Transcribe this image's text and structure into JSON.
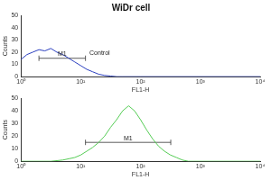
{
  "chart_data": [
    {
      "type": "line",
      "title": "WiDr cell",
      "x_label": "FL1-H",
      "y_label": "Counts",
      "series": [
        {
          "name": "Control",
          "color": "#2b3fbf",
          "x": [
            1,
            1.26,
            1.58,
            2,
            2.51,
            3.16,
            3.98,
            5.01,
            6.31,
            7.94,
            10,
            12.6,
            15.8,
            20,
            25.1,
            31.6,
            39.8,
            50.1,
            100,
            10000
          ],
          "values": [
            14,
            18,
            20,
            22,
            21,
            23,
            20,
            18,
            15,
            12,
            9,
            6,
            4,
            2,
            1,
            0.5,
            0,
            0,
            0,
            0
          ]
        }
      ],
      "gate": {
        "label": "M1",
        "x": [
          2,
          12
        ],
        "y": 15
      },
      "annotations": [
        {
          "text": "Control",
          "x": 14,
          "y": 16
        }
      ],
      "log": "x",
      "xlim": [
        1,
        10000
      ],
      "xticks": [
        {
          "value": 1,
          "label": "10⁰"
        },
        {
          "value": 10,
          "label": "10¹"
        },
        {
          "value": 100,
          "label": "10²"
        },
        {
          "value": 1000,
          "label": "10³"
        },
        {
          "value": 10000,
          "label": "10⁴"
        }
      ],
      "ylim": [
        0,
        50
      ],
      "yticks": [
        0,
        10,
        20,
        30,
        40,
        50
      ],
      "grid": false
    },
    {
      "type": "line",
      "x_label": "FL1-H",
      "y_label": "Counts",
      "series": [
        {
          "name": "WiDr",
          "color": "#55cc55",
          "x": [
            1,
            3.16,
            5.01,
            6.31,
            7.94,
            10,
            12.6,
            15.8,
            20,
            25.1,
            31.6,
            39.8,
            50.1,
            63.1,
            79.4,
            100,
            126,
            158,
            200,
            251,
            316,
            398,
            501,
            631,
            10000
          ],
          "values": [
            0,
            0,
            1,
            2,
            3,
            5,
            8,
            11,
            15,
            20,
            27,
            33,
            40,
            44,
            40,
            33,
            25,
            18,
            12,
            8,
            5,
            3,
            1,
            0,
            0
          ]
        }
      ],
      "gate": {
        "label": "M1",
        "x": [
          12,
          320
        ],
        "y": 15
      },
      "log": "x",
      "xlim": [
        1,
        10000
      ],
      "xticks": [
        {
          "value": 1,
          "label": "10⁰"
        },
        {
          "value": 10,
          "label": "10¹"
        },
        {
          "value": 100,
          "label": "10²"
        },
        {
          "value": 1000,
          "label": "10³"
        },
        {
          "value": 10000,
          "label": "10⁴"
        }
      ],
      "ylim": [
        0,
        50
      ],
      "yticks": [
        0,
        10,
        20,
        30,
        40,
        50
      ],
      "grid": false
    }
  ]
}
